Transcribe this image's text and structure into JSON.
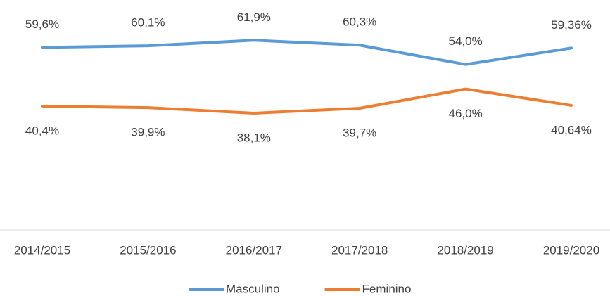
{
  "chart_data": {
    "type": "line",
    "categories": [
      "2014/2015",
      "2015/2016",
      "2016/2017",
      "2017/2018",
      "2018/2019",
      "2019/2020"
    ],
    "series": [
      {
        "name": "Masculino",
        "color": "#5b9bd5",
        "values": [
          59.6,
          60.1,
          61.9,
          60.3,
          54.0,
          59.36
        ],
        "value_labels": [
          "59,6%",
          "60,1%",
          "61,9%",
          "60,3%",
          "54,0%",
          "59,36%"
        ]
      },
      {
        "name": "Feminino",
        "color": "#ed7d31",
        "values": [
          40.4,
          39.9,
          38.1,
          39.7,
          46.0,
          40.64
        ],
        "value_labels": [
          "40,4%",
          "39,9%",
          "38,1%",
          "39,7%",
          "46,0%",
          "40,64%"
        ]
      }
    ],
    "ylim": [
      0,
      70
    ],
    "legend": "bottom"
  }
}
